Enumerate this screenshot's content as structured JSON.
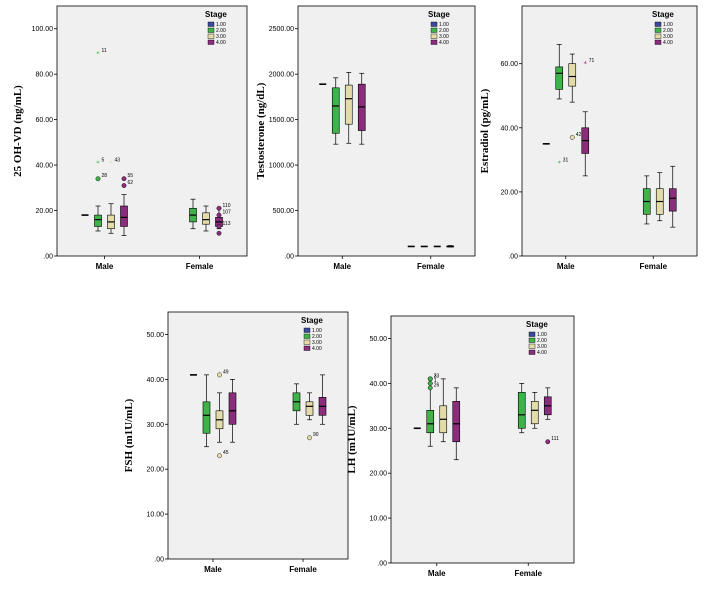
{
  "stage_colors": {
    "1.00": "#3a4a9c",
    "2.00": "#3fb24a",
    "3.00": "#e3dcaa",
    "4.00": "#8a2d7c"
  },
  "chart_data": [
    {
      "type": "boxplot",
      "ylabel": "25 OH-VD (ng/mL)",
      "ylim": [
        0,
        110
      ],
      "yticks": [
        0,
        20,
        40,
        60,
        80,
        100
      ],
      "ytick_labels": [
        ".00",
        "20.00",
        "40.00",
        "60.00",
        "80.00",
        "100.00"
      ],
      "categories": [
        "Male",
        "Female"
      ],
      "legend_title": "Stage",
      "legend": [
        "1.00",
        "2.00",
        "3.00",
        "4.00"
      ],
      "series": [
        {
          "stage": "1.00",
          "boxes": [
            {
              "min": 18,
              "q1": 18,
              "median": 18,
              "q3": 18,
              "max": 18
            },
            null
          ]
        },
        {
          "stage": "2.00",
          "boxes": [
            {
              "min": 11,
              "q1": 13,
              "median": 16,
              "q3": 18,
              "max": 22
            },
            {
              "min": 12,
              "q1": 15,
              "median": 18,
              "q3": 21,
              "max": 25
            }
          ]
        },
        {
          "stage": "3.00",
          "boxes": [
            {
              "min": 10,
              "q1": 12,
              "median": 15,
              "q3": 18,
              "max": 23
            },
            {
              "min": 11,
              "q1": 14,
              "median": 16,
              "q3": 19,
              "max": 22
            }
          ]
        },
        {
          "stage": "4.00",
          "boxes": [
            {
              "min": 9,
              "q1": 13,
              "median": 17,
              "q3": 22,
              "max": 27
            },
            {
              "min": 12,
              "q1": 13,
              "median": 15,
              "q3": 17,
              "max": 21
            }
          ]
        }
      ],
      "outliers": [
        {
          "cat": 0,
          "stage": 1,
          "value": 89,
          "label": "11",
          "shape": "star"
        },
        {
          "cat": 0,
          "stage": 1,
          "value": 41,
          "label": "5",
          "shape": "star"
        },
        {
          "cat": 0,
          "stage": 1,
          "value": 34,
          "label": "28",
          "shape": "circle"
        },
        {
          "cat": 0,
          "stage": 2,
          "value": 41,
          "label": "43",
          "shape": "star"
        },
        {
          "cat": 0,
          "stage": 3,
          "value": 34,
          "label": "55",
          "shape": "circle"
        },
        {
          "cat": 0,
          "stage": 3,
          "value": 31,
          "label": "62",
          "shape": "circle"
        },
        {
          "cat": 1,
          "stage": 3,
          "value": 21,
          "label": "110",
          "shape": "circle"
        },
        {
          "cat": 1,
          "stage": 3,
          "value": 18,
          "label": "107",
          "shape": "circle"
        },
        {
          "cat": 1,
          "stage": 3,
          "value": 13,
          "label": "113",
          "shape": "circle"
        },
        {
          "cat": 1,
          "stage": 3,
          "value": 10,
          "label": "",
          "shape": "circle"
        }
      ]
    },
    {
      "type": "boxplot",
      "ylabel": "Testosterone (ng/dL)",
      "ylim": [
        0,
        2750
      ],
      "yticks": [
        0,
        500,
        1000,
        1500,
        2000,
        2500
      ],
      "ytick_labels": [
        ".00",
        "500.00",
        "1000.00",
        "1500.00",
        "2000.00",
        "2500.00"
      ],
      "categories": [
        "Male",
        "Female"
      ],
      "legend_title": "Stage",
      "legend": [
        "1.00",
        "2.00",
        "3.00",
        "4.00"
      ],
      "series": [
        {
          "stage": "1.00",
          "boxes": [
            {
              "min": 1890,
              "q1": 1890,
              "median": 1890,
              "q3": 1890,
              "max": 1890
            },
            {
              "min": 105,
              "q1": 105,
              "median": 105,
              "q3": 105,
              "max": 105
            }
          ]
        },
        {
          "stage": "2.00",
          "boxes": [
            {
              "min": 1230,
              "q1": 1350,
              "median": 1650,
              "q3": 1850,
              "max": 1960
            },
            {
              "min": 105,
              "q1": 105,
              "median": 105,
              "q3": 105,
              "max": 105
            }
          ]
        },
        {
          "stage": "3.00",
          "boxes": [
            {
              "min": 1240,
              "q1": 1450,
              "median": 1730,
              "q3": 1880,
              "max": 2020
            },
            {
              "min": 105,
              "q1": 105,
              "median": 105,
              "q3": 105,
              "max": 105
            }
          ]
        },
        {
          "stage": "4.00",
          "boxes": [
            {
              "min": 1230,
              "q1": 1380,
              "median": 1640,
              "q3": 1890,
              "max": 2010
            },
            {
              "min": 100,
              "q1": 100,
              "median": 105,
              "q3": 110,
              "max": 115
            }
          ]
        }
      ],
      "outliers": []
    },
    {
      "type": "boxplot",
      "ylabel": "Estradiol (pg/mL)",
      "ylim": [
        0,
        78
      ],
      "yticks": [
        0,
        20,
        40,
        60
      ],
      "ytick_labels": [
        ".00",
        "20.00",
        "40.00",
        "60.00"
      ],
      "categories": [
        "Male",
        "Female"
      ],
      "legend_title": "Stage",
      "legend": [
        "1.00",
        "2.00",
        "3.00",
        "4.00"
      ],
      "series": [
        {
          "stage": "1.00",
          "boxes": [
            {
              "min": 35,
              "q1": 35,
              "median": 35,
              "q3": 35,
              "max": 35
            },
            null
          ]
        },
        {
          "stage": "2.00",
          "boxes": [
            {
              "min": 49,
              "q1": 52,
              "median": 57,
              "q3": 59,
              "max": 66
            },
            {
              "min": 10,
              "q1": 13,
              "median": 17,
              "q3": 21,
              "max": 25
            }
          ]
        },
        {
          "stage": "3.00",
          "boxes": [
            {
              "min": 48,
              "q1": 53,
              "median": 56,
              "q3": 60,
              "max": 63
            },
            {
              "min": 11,
              "q1": 13,
              "median": 17,
              "q3": 21,
              "max": 26
            }
          ]
        },
        {
          "stage": "4.00",
          "boxes": [
            {
              "min": 25,
              "q1": 32,
              "median": 36,
              "q3": 40,
              "max": 45
            },
            {
              "min": 9,
              "q1": 14,
              "median": 18,
              "q3": 21,
              "max": 28
            }
          ]
        }
      ],
      "outliers": [
        {
          "cat": 0,
          "stage": 1,
          "value": 29,
          "label": "31",
          "shape": "star"
        },
        {
          "cat": 0,
          "stage": 2,
          "value": 37,
          "label": "42",
          "shape": "circle"
        },
        {
          "cat": 0,
          "stage": 3,
          "value": 60,
          "label": "71",
          "shape": "star"
        }
      ]
    },
    {
      "type": "boxplot",
      "ylabel": "FSH (m1U/mL)",
      "ylim": [
        0,
        55
      ],
      "yticks": [
        0,
        10,
        20,
        30,
        40,
        50
      ],
      "ytick_labels": [
        ".00",
        "10.00",
        "20.00",
        "30.00",
        "40.00",
        "50.00"
      ],
      "categories": [
        "Male",
        "Female"
      ],
      "legend_title": "Stage",
      "legend": [
        "1.00",
        "2.00",
        "3.00",
        "4.00"
      ],
      "series": [
        {
          "stage": "1.00",
          "boxes": [
            {
              "min": 41,
              "q1": 41,
              "median": 41,
              "q3": 41,
              "max": 41
            },
            null
          ]
        },
        {
          "stage": "2.00",
          "boxes": [
            {
              "min": 25,
              "q1": 28,
              "median": 32,
              "q3": 35,
              "max": 41
            },
            {
              "min": 30,
              "q1": 33,
              "median": 35,
              "q3": 37,
              "max": 39
            }
          ]
        },
        {
          "stage": "3.00",
          "boxes": [
            {
              "min": 26,
              "q1": 29,
              "median": 31,
              "q3": 33,
              "max": 37
            },
            {
              "min": 31,
              "q1": 32,
              "median": 34,
              "q3": 35,
              "max": 37
            }
          ]
        },
        {
          "stage": "4.00",
          "boxes": [
            {
              "min": 26,
              "q1": 30,
              "median": 33,
              "q3": 37,
              "max": 40
            },
            {
              "min": 30,
              "q1": 32,
              "median": 34,
              "q3": 36,
              "max": 41
            }
          ]
        }
      ],
      "outliers": [
        {
          "cat": 0,
          "stage": 2,
          "value": 41,
          "label": "49",
          "shape": "circle"
        },
        {
          "cat": 0,
          "stage": 2,
          "value": 23,
          "label": "45",
          "shape": "circle"
        },
        {
          "cat": 1,
          "stage": 2,
          "value": 27,
          "label": "90",
          "shape": "circle"
        }
      ]
    },
    {
      "type": "boxplot",
      "ylabel": "LH (m1U/mL)",
      "ylim": [
        0,
        55
      ],
      "yticks": [
        0,
        10,
        20,
        30,
        40,
        50
      ],
      "ytick_labels": [
        ".00",
        "10.00",
        "20.00",
        "30.00",
        "40.00",
        "50.00"
      ],
      "categories": [
        "Male",
        "Female"
      ],
      "legend_title": "Stage",
      "legend": [
        "1.00",
        "2.00",
        "3.00",
        "4.00"
      ],
      "series": [
        {
          "stage": "1.00",
          "boxes": [
            {
              "min": 30,
              "q1": 30,
              "median": 30,
              "q3": 30,
              "max": 30
            },
            null
          ]
        },
        {
          "stage": "2.00",
          "boxes": [
            {
              "min": 26,
              "q1": 29,
              "median": 31,
              "q3": 34,
              "max": 40
            },
            {
              "min": 29,
              "q1": 30,
              "median": 33,
              "q3": 38,
              "max": 40
            }
          ]
        },
        {
          "stage": "3.00",
          "boxes": [
            {
              "min": 27,
              "q1": 29,
              "median": 32,
              "q3": 35,
              "max": 41
            },
            {
              "min": 30,
              "q1": 31,
              "median": 34,
              "q3": 36,
              "max": 38
            }
          ]
        },
        {
          "stage": "4.00",
          "boxes": [
            {
              "min": 23,
              "q1": 27,
              "median": 31,
              "q3": 36,
              "max": 39
            },
            {
              "min": 32,
              "q1": 33,
              "median": 35,
              "q3": 37,
              "max": 39
            }
          ]
        }
      ],
      "outliers": [
        {
          "cat": 0,
          "stage": 1,
          "value": 41,
          "label": "33",
          "shape": "circle"
        },
        {
          "cat": 0,
          "stage": 1,
          "value": 40,
          "label": "1",
          "shape": "circle"
        },
        {
          "cat": 0,
          "stage": 1,
          "value": 41,
          "label": "2",
          "shape": "circle"
        },
        {
          "cat": 0,
          "stage": 1,
          "value": 39,
          "label": "26",
          "shape": "circle"
        },
        {
          "cat": 1,
          "stage": 3,
          "value": 27,
          "label": "111",
          "shape": "circle"
        }
      ]
    }
  ]
}
